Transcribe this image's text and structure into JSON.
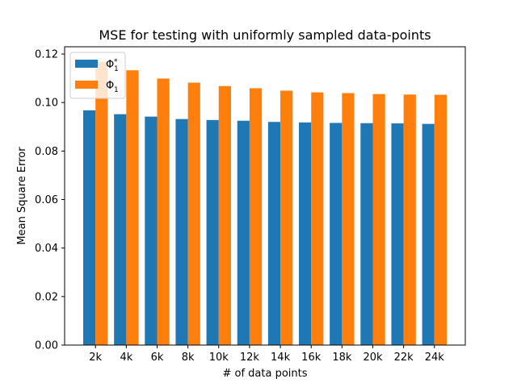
{
  "chart_data": {
    "type": "bar",
    "title": "MSE for testing with uniformly sampled data-points",
    "xlabel": "# of data points",
    "ylabel": "Mean Square Error",
    "categories": [
      "2k",
      "4k",
      "6k",
      "8k",
      "10k",
      "12k",
      "14k",
      "16k",
      "18k",
      "20k",
      "22k",
      "24k"
    ],
    "ylim": [
      0,
      0.123
    ],
    "yticks": [
      0.0,
      0.02,
      0.04,
      0.06,
      0.08,
      0.1,
      0.12
    ],
    "ytick_labels": [
      "0.00",
      "0.02",
      "0.04",
      "0.06",
      "0.08",
      "0.10",
      "0.12"
    ],
    "grid": false,
    "legend_position": "top-left",
    "series": [
      {
        "name": "Φ*1",
        "legend_base": "Φ",
        "legend_sup": "*",
        "legend_sub": "1",
        "color": "#1f77b4",
        "values": [
          0.0968,
          0.0952,
          0.0942,
          0.0932,
          0.0928,
          0.0925,
          0.092,
          0.0918,
          0.0916,
          0.0915,
          0.0914,
          0.0912
        ]
      },
      {
        "name": "Φ1",
        "legend_base": "Φ",
        "legend_sup": "",
        "legend_sub": "1",
        "color": "#ff7f0e",
        "values": [
          0.1168,
          0.1133,
          0.1099,
          0.1082,
          0.1068,
          0.1059,
          0.1049,
          0.1042,
          0.1039,
          0.1035,
          0.1033,
          0.1032
        ]
      }
    ]
  }
}
